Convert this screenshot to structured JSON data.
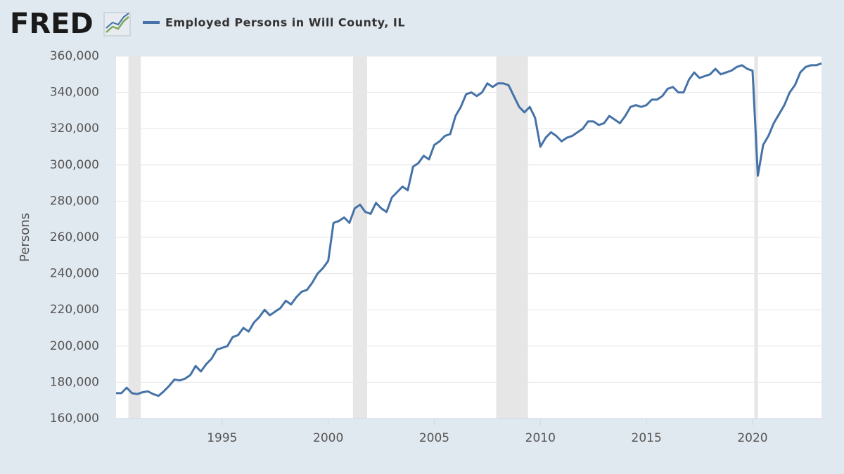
{
  "logo": "FRED",
  "chart_data": {
    "type": "line",
    "title": "Employed Persons in Will County, IL",
    "y_label": "Persons",
    "grid": true,
    "xlim": [
      1990,
      2023.25
    ],
    "xticks": [
      1995,
      2000,
      2005,
      2010,
      2015,
      2020
    ],
    "ylim": [
      160000,
      360000
    ],
    "yticks": [
      {
        "value": 160000,
        "label": "160,000"
      },
      {
        "value": 180000,
        "label": "180,000"
      },
      {
        "value": 200000,
        "label": "200,000"
      },
      {
        "value": 220000,
        "label": "220,000"
      },
      {
        "value": 240000,
        "label": "240,000"
      },
      {
        "value": 260000,
        "label": "260,000"
      },
      {
        "value": 280000,
        "label": "280,000"
      },
      {
        "value": 300000,
        "label": "300,000"
      },
      {
        "value": 320000,
        "label": "320,000"
      },
      {
        "value": 340000,
        "label": "340,000"
      },
      {
        "value": 360000,
        "label": "360,000"
      }
    ],
    "recessions": [
      [
        1990.583,
        1991.167
      ],
      [
        2001.167,
        2001.833
      ],
      [
        2007.917,
        2009.417
      ],
      [
        2020.083,
        2020.25
      ]
    ],
    "recession_color": "#e6e6e6",
    "x": [
      1990,
      1990.25,
      1990.5,
      1990.75,
      1991,
      1991.25,
      1991.5,
      1991.75,
      1992,
      1992.25,
      1992.5,
      1992.75,
      1993,
      1993.25,
      1993.5,
      1993.75,
      1994,
      1994.25,
      1994.5,
      1994.75,
      1995,
      1995.25,
      1995.5,
      1995.75,
      1996,
      1996.25,
      1996.5,
      1996.75,
      1997,
      1997.25,
      1997.5,
      1997.75,
      1998,
      1998.25,
      1998.5,
      1998.75,
      1999,
      1999.25,
      1999.5,
      1999.75,
      2000,
      2000.25,
      2000.5,
      2000.75,
      2001,
      2001.25,
      2001.5,
      2001.75,
      2002,
      2002.25,
      2002.5,
      2002.75,
      2003,
      2003.25,
      2003.5,
      2003.75,
      2004,
      2004.25,
      2004.5,
      2004.75,
      2005,
      2005.25,
      2005.5,
      2005.75,
      2006,
      2006.25,
      2006.5,
      2006.75,
      2007,
      2007.25,
      2007.5,
      2007.75,
      2008,
      2008.25,
      2008.5,
      2008.75,
      2009,
      2009.25,
      2009.5,
      2009.75,
      2010,
      2010.25,
      2010.5,
      2010.75,
      2011,
      2011.25,
      2011.5,
      2011.75,
      2012,
      2012.25,
      2012.5,
      2012.75,
      2013,
      2013.25,
      2013.5,
      2013.75,
      2014,
      2014.25,
      2014.5,
      2014.75,
      2015,
      2015.25,
      2015.5,
      2015.75,
      2016,
      2016.25,
      2016.5,
      2016.75,
      2017,
      2017.25,
      2017.5,
      2017.75,
      2018,
      2018.25,
      2018.5,
      2018.75,
      2019,
      2019.25,
      2019.5,
      2019.75,
      2020,
      2020.25,
      2020.5,
      2020.75,
      2021,
      2021.25,
      2021.5,
      2021.75,
      2022,
      2022.25,
      2022.5,
      2022.75,
      2023,
      2023.25
    ],
    "series": [
      {
        "name": "Employed Persons in Will County, IL",
        "color": "#4572a7",
        "values": [
          174000,
          174000,
          177000,
          174000,
          173500,
          174500,
          175000,
          173500,
          172500,
          175000,
          178000,
          181500,
          181000,
          182000,
          184000,
          189000,
          186000,
          190000,
          193000,
          198000,
          199000,
          200000,
          205000,
          206000,
          210000,
          208000,
          213000,
          216000,
          220000,
          217000,
          219000,
          221000,
          225000,
          223000,
          227000,
          230000,
          231000,
          235000,
          240000,
          243000,
          247000,
          268000,
          269000,
          271000,
          268000,
          276000,
          278000,
          274000,
          273000,
          279000,
          276000,
          274000,
          282000,
          285000,
          288000,
          286000,
          299000,
          301000,
          305000,
          303000,
          311000,
          313000,
          316000,
          317000,
          327000,
          332000,
          339000,
          340000,
          338000,
          340000,
          345000,
          343000,
          345000,
          345000,
          344000,
          338000,
          332000,
          329000,
          332000,
          326000,
          310000,
          315000,
          318000,
          316000,
          313000,
          315000,
          316000,
          318000,
          320000,
          324000,
          324000,
          322000,
          323000,
          327000,
          325000,
          323000,
          327000,
          332000,
          333000,
          332000,
          333000,
          336000,
          336000,
          338000,
          342000,
          343000,
          340000,
          340000,
          347000,
          351000,
          348000,
          349000,
          350000,
          353000,
          350000,
          351000,
          352000,
          354000,
          355000,
          353000,
          352000,
          294000,
          311000,
          316000,
          323000,
          328000,
          333000,
          340000,
          344000,
          351000,
          354000,
          355000,
          355000,
          356000
        ]
      }
    ]
  }
}
